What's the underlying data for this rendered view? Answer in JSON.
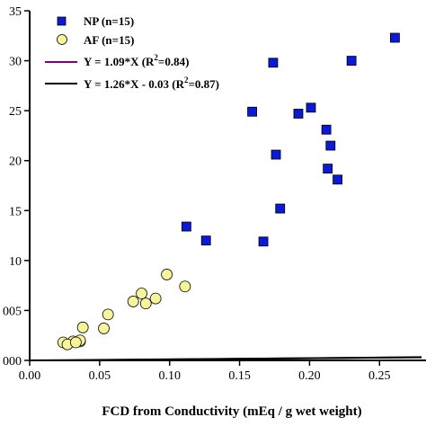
{
  "chart_data": {
    "type": "scatter",
    "xlabel": "FCD from Conductivity (mEq / g wet weight)",
    "ylabel": "",
    "xlim": [
      0.0,
      0.28
    ],
    "ylim": [
      0,
      35
    ],
    "x_ticks": [
      0.0,
      0.05,
      0.1,
      0.15,
      0.2,
      0.25
    ],
    "x_tick_labels": [
      "0.00",
      "0.05",
      "0.10",
      "0.15",
      "0.20",
      "0.25"
    ],
    "y_ticks": [
      0,
      5,
      10,
      15,
      20,
      25,
      30,
      35
    ],
    "y_tick_labels": [
      "000",
      "005",
      "10",
      "15",
      "20",
      "25",
      "30",
      "35"
    ],
    "grid": false,
    "legend_position": "top-left",
    "series": [
      {
        "name": "NP (n=15)",
        "marker": "square",
        "color": "#0a1ad6",
        "edge": "#000000",
        "points": [
          [
            0.112,
            13.4
          ],
          [
            0.126,
            12.0
          ],
          [
            0.159,
            24.9
          ],
          [
            0.167,
            11.9
          ],
          [
            0.174,
            29.8
          ],
          [
            0.176,
            20.6
          ],
          [
            0.179,
            15.2
          ],
          [
            0.192,
            24.7
          ],
          [
            0.201,
            25.3
          ],
          [
            0.212,
            23.1
          ],
          [
            0.213,
            19.2
          ],
          [
            0.215,
            21.5
          ],
          [
            0.22,
            18.1
          ],
          [
            0.23,
            30.0
          ],
          [
            0.261,
            32.3
          ]
        ]
      },
      {
        "name": "AF (n=15)",
        "marker": "circle",
        "color": "#f7f59a",
        "edge": "#000000",
        "points": [
          [
            0.024,
            1.8
          ],
          [
            0.031,
            1.9
          ],
          [
            0.036,
            1.9
          ],
          [
            0.038,
            3.3
          ],
          [
            0.053,
            3.2
          ],
          [
            0.056,
            4.6
          ],
          [
            0.074,
            5.9
          ],
          [
            0.08,
            6.7
          ],
          [
            0.083,
            5.7
          ],
          [
            0.09,
            6.2
          ],
          [
            0.098,
            8.6
          ],
          [
            0.111,
            7.4
          ],
          [
            0.036,
            2.0
          ],
          [
            0.027,
            1.6
          ],
          [
            0.033,
            1.8
          ]
        ]
      }
    ],
    "fit_lines": [
      {
        "name": "Y = 1.09*X (R²=0.84)",
        "label_main": "Y = 1.09*X (R",
        "label_sup": "2",
        "label_end": "=0.84)",
        "slope": 1.09,
        "intercept": 0.0,
        "color": "#800080"
      },
      {
        "name": "Y = 1.26*X - 0.03 (R²=0.87)",
        "label_main": "Y = 1.26*X - 0.03 (R",
        "label_sup": "2",
        "label_end": "=0.87)",
        "slope": 1.26,
        "intercept": -0.03,
        "color": "#000000"
      }
    ]
  }
}
